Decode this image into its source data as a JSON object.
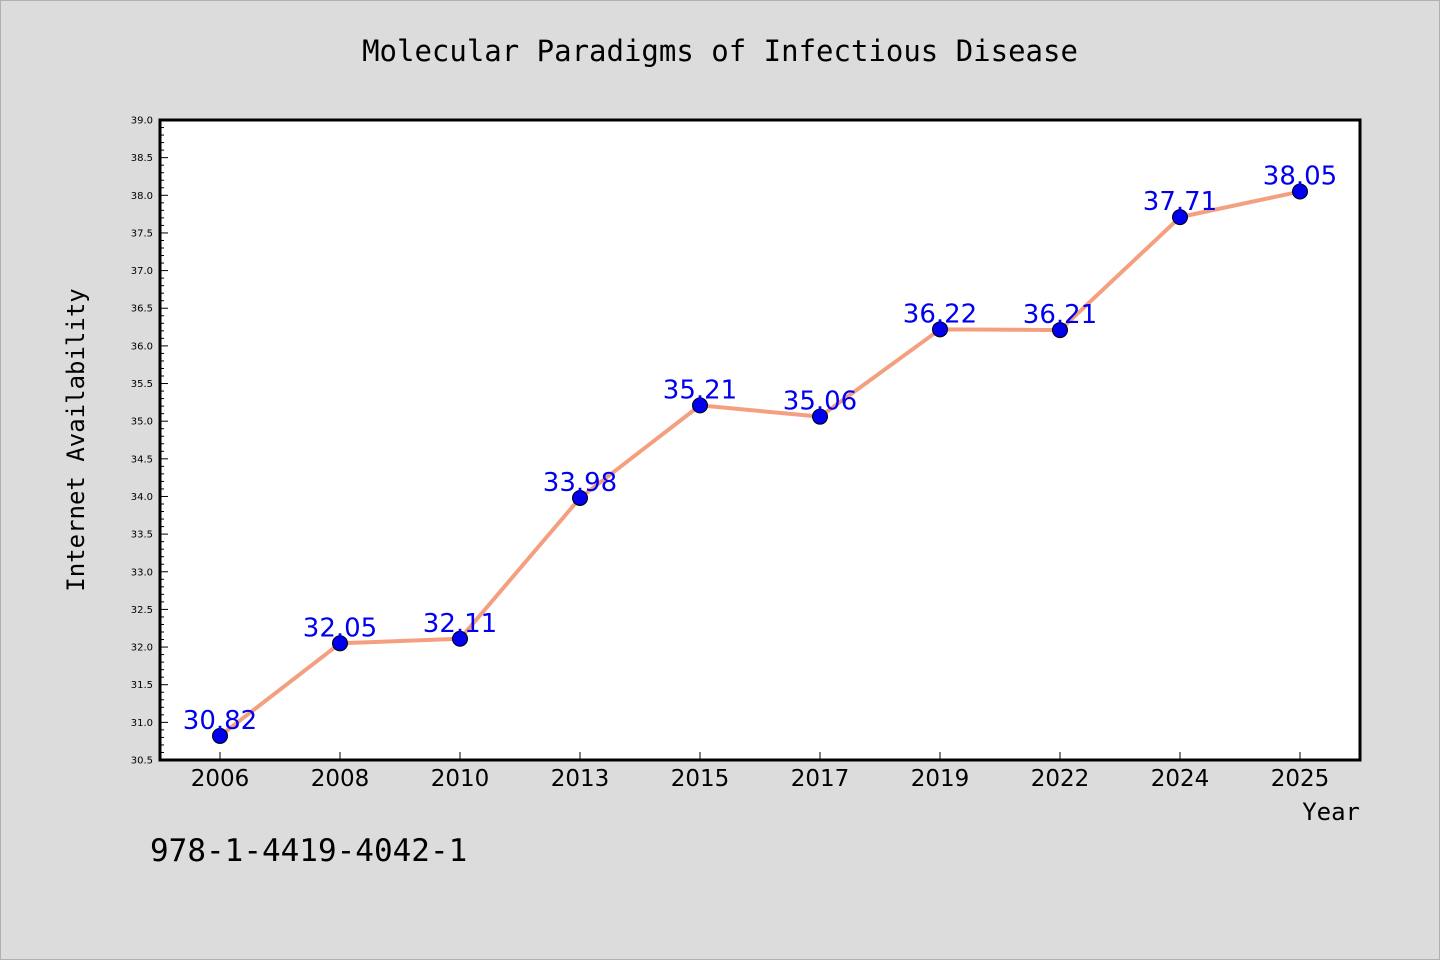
{
  "isbn": "978-1-4419-4042-1",
  "colors": {
    "background": "#dcdcdc",
    "plot_bg": "#ffffff",
    "line": "#f4a080",
    "marker": "#0000ee",
    "label": "#0000ee"
  },
  "chart_data": {
    "type": "line",
    "title": "Molecular Paradigms of Infectious Disease",
    "xlabel": "Year",
    "ylabel": "Internet Availability",
    "categories": [
      "2006",
      "2008",
      "2010",
      "2013",
      "2015",
      "2017",
      "2019",
      "2022",
      "2024",
      "2025"
    ],
    "series": [
      {
        "values": [
          30.82,
          32.05,
          32.11,
          33.98,
          35.21,
          35.06,
          36.22,
          36.21,
          37.71,
          38.05
        ],
        "labels": [
          "30.82",
          "32.05",
          "32.11",
          "33.98",
          "35.21",
          "35.06",
          "36.22",
          "36.21",
          "37.71",
          "38.05"
        ]
      }
    ],
    "ylim": [
      30.5,
      39.0
    ],
    "yticks": [
      "30.5",
      "31.0",
      "31.5",
      "32.0",
      "32.5",
      "33.0",
      "33.5",
      "34.0",
      "34.5",
      "35.0",
      "35.5",
      "36.0",
      "36.5",
      "37.0",
      "37.5",
      "38.0",
      "38.5",
      "39.0"
    ],
    "grid": false,
    "legend": "none"
  }
}
